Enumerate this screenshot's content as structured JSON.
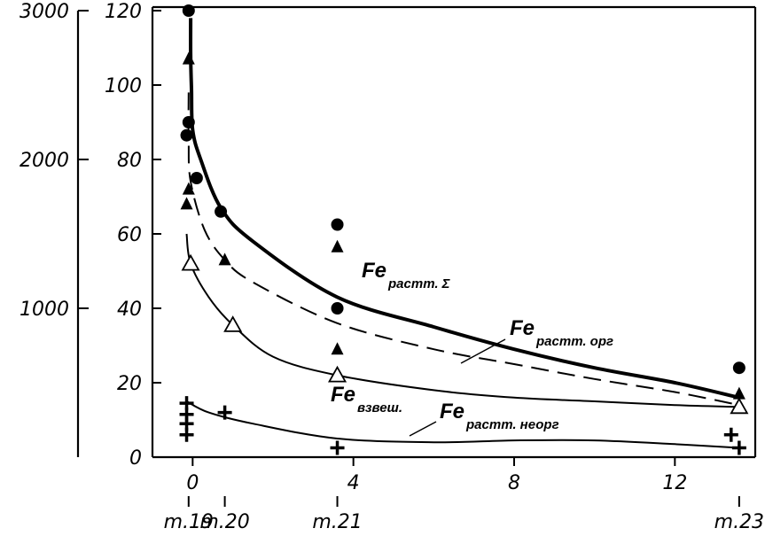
{
  "chart_data": {
    "type": "scatter",
    "xlim": [
      -1,
      14
    ],
    "ylim": [
      0,
      120
    ],
    "y2lim": [
      0,
      3000
    ],
    "grid": false,
    "x_ticks": [
      0,
      4,
      8,
      12
    ],
    "x_tick_labels": [
      "0",
      "4",
      "8",
      "12"
    ],
    "y_ticks": [
      0,
      20,
      40,
      60,
      80,
      100,
      120
    ],
    "y_tick_labels": [
      "0",
      "20",
      "40",
      "60",
      "80",
      "100",
      "120"
    ],
    "y2_ticks": [
      1000,
      2000,
      3000
    ],
    "y2_tick_labels": [
      "1000",
      "2000",
      "3000"
    ],
    "stations": [
      {
        "label": "m.19",
        "x": -0.1
      },
      {
        "label": "m.20",
        "x": 0.8
      },
      {
        "label": "m.21",
        "x": 3.6
      },
      {
        "label": "m.23",
        "x": 13.6
      }
    ],
    "series": [
      {
        "name": "Fe",
        "subscript": "растт. Σ",
        "marker": "circle",
        "line": "thick",
        "points": [
          [
            -0.1,
            120
          ],
          [
            -0.1,
            90
          ],
          [
            -0.15,
            86.5
          ],
          [
            0.1,
            75
          ],
          [
            0.7,
            66
          ],
          [
            3.6,
            62.5
          ],
          [
            3.6,
            40
          ],
          [
            13.6,
            24
          ]
        ],
        "curve": [
          [
            -0.05,
            118
          ],
          [
            -0.05,
            108
          ],
          [
            -0.03,
            99
          ],
          [
            0,
            88
          ],
          [
            0.2,
            80
          ],
          [
            0.7,
            67
          ],
          [
            1.5,
            58
          ],
          [
            3.6,
            43
          ],
          [
            6,
            35
          ],
          [
            8,
            29
          ],
          [
            10,
            24
          ],
          [
            12,
            20
          ],
          [
            13.6,
            16
          ]
        ]
      },
      {
        "name": "Fe",
        "subscript": "растт. орг",
        "marker": "triangle-filled",
        "line": "dashed",
        "points": [
          [
            -0.1,
            107
          ],
          [
            -0.1,
            72
          ],
          [
            -0.15,
            68
          ],
          [
            0.8,
            53
          ],
          [
            3.6,
            56.5
          ],
          [
            3.6,
            29
          ],
          [
            13.6,
            17
          ]
        ],
        "curve": [
          [
            -0.1,
            98
          ],
          [
            -0.1,
            85
          ],
          [
            -0.05,
            74
          ],
          [
            0.3,
            61
          ],
          [
            0.8,
            53
          ],
          [
            1.5,
            47
          ],
          [
            3.6,
            36
          ],
          [
            6,
            29
          ],
          [
            8,
            25
          ],
          [
            10,
            21
          ],
          [
            12,
            17.5
          ],
          [
            13.6,
            14
          ]
        ]
      },
      {
        "name": "Fe",
        "subscript": "взвеш.",
        "marker": "triangle-open",
        "line": "thin",
        "points": [
          [
            -0.05,
            52
          ],
          [
            1,
            35.5
          ],
          [
            3.6,
            22
          ],
          [
            13.6,
            13.5
          ]
        ],
        "curve": [
          [
            -0.15,
            60
          ],
          [
            -0.05,
            52
          ],
          [
            0.4,
            43
          ],
          [
            1,
            35.5
          ],
          [
            2,
            27
          ],
          [
            3.6,
            22
          ],
          [
            6,
            18
          ],
          [
            8,
            16
          ],
          [
            10,
            15
          ],
          [
            12,
            14
          ],
          [
            13.6,
            13.5
          ]
        ]
      },
      {
        "name": "Fe",
        "subscript": "растт. неорг",
        "marker": "plus",
        "line": "thin",
        "points": [
          [
            -0.15,
            14.5
          ],
          [
            -0.15,
            11.5
          ],
          [
            -0.15,
            9
          ],
          [
            -0.15,
            6
          ],
          [
            0.8,
            12
          ],
          [
            3.6,
            2.5
          ],
          [
            13.4,
            6
          ],
          [
            13.6,
            2.5
          ]
        ],
        "curve": [
          [
            -0.15,
            15
          ],
          [
            0.4,
            12
          ],
          [
            1.5,
            9
          ],
          [
            3.6,
            5
          ],
          [
            6,
            4
          ],
          [
            8,
            4.5
          ],
          [
            10,
            4.5
          ],
          [
            12,
            3.5
          ],
          [
            13.6,
            2.5
          ]
        ]
      }
    ]
  },
  "labels": {
    "series1_main": "Fe",
    "series1_sub": "растт. Σ",
    "series2_main": "Fe",
    "series2_sub": "растт. орг",
    "series3_main": "Fe",
    "series3_sub": "взвеш.",
    "series4_main": "Fe",
    "series4_sub": "растт. неорг"
  }
}
